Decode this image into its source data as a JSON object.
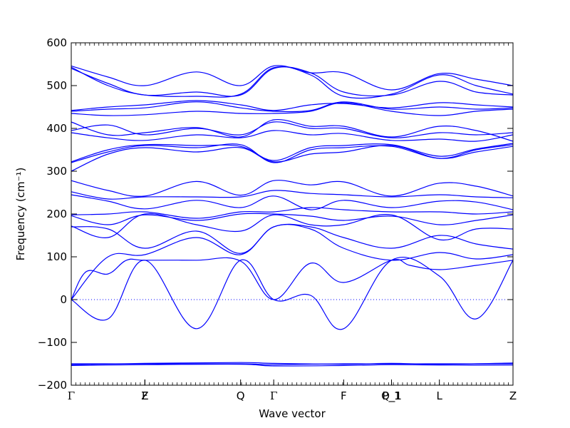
{
  "chart_data": {
    "type": "line",
    "title": "",
    "xlabel": "Wave vector",
    "ylabel": "Frequency (cm⁻¹)",
    "ylim": [
      -200,
      600
    ],
    "yticks": [
      -200,
      -100,
      0,
      100,
      200,
      300,
      400,
      500,
      600
    ],
    "xlim": [
      0,
      12
    ],
    "high_symmetry_points": [
      {
        "label": "Γ",
        "x": 0
      },
      {
        "label": "F",
        "x": 2
      },
      {
        "label": "Z",
        "x": 2
      },
      {
        "label": "Q",
        "x": 4.6
      },
      {
        "label": "Γ",
        "x": 5.5
      },
      {
        "label": "F",
        "x": 7.4
      },
      {
        "label": "P_1",
        "x": 8.7
      },
      {
        "label": "Q_1",
        "x": 8.7
      },
      {
        "label": "L",
        "x": 10
      },
      {
        "label": "Z",
        "x": 12
      }
    ],
    "zero_line": true,
    "line_color": "#0000ff",
    "grid": false,
    "series": [
      {
        "x": [
          0,
          2,
          4.6,
          5.5,
          7.4,
          8.7,
          10,
          12
        ],
        "values": [
          -150,
          -150,
          -150,
          -152,
          -150,
          -150,
          -150,
          -150
        ]
      },
      {
        "x": [
          0,
          2,
          4.6,
          5.5,
          7.4,
          8.7,
          10,
          12
        ],
        "values": [
          -152,
          -149,
          -147,
          -149,
          -151,
          -149,
          -151,
          -148
        ]
      },
      {
        "x": [
          0,
          2,
          4.6,
          5.5,
          7.4,
          8.7,
          10,
          12
        ],
        "values": [
          -154,
          -152,
          -151,
          -155,
          -154,
          -152,
          -153,
          -153
        ]
      },
      {
        "x": [
          0,
          1,
          2,
          3.4,
          4.6,
          5.5,
          6.5,
          7.4,
          8.7,
          10,
          11,
          12
        ],
        "values": [
          0,
          -45,
          92,
          -68,
          92,
          0,
          10,
          -68,
          92,
          55,
          -45,
          92
        ]
      },
      {
        "x": [
          0,
          0.4,
          1,
          1.5,
          2,
          3.4,
          4.6,
          5.5,
          6.5,
          7.4,
          8.7,
          9.2,
          10,
          11,
          12
        ],
        "values": [
          0,
          65,
          60,
          92,
          92,
          92,
          90,
          0,
          85,
          40,
          92,
          80,
          70,
          80,
          92
        ]
      },
      {
        "x": [
          0,
          1,
          2,
          3.4,
          4.6,
          5.5,
          6.5,
          7.4,
          8.7,
          10,
          11,
          12
        ],
        "values": [
          0,
          100,
          105,
          145,
          105,
          170,
          165,
          120,
          92,
          110,
          95,
          105
        ]
      },
      {
        "x": [
          0,
          1,
          2,
          3.4,
          4.6,
          5.5,
          6.5,
          7.4,
          8.7,
          10,
          11,
          12
        ],
        "values": [
          170,
          165,
          120,
          160,
          108,
          170,
          170,
          145,
          120,
          150,
          130,
          118
        ]
      },
      {
        "x": [
          0,
          1,
          2,
          3.4,
          4.6,
          5.5,
          6.5,
          7.4,
          8.7,
          10,
          11,
          12
        ],
        "values": [
          172,
          145,
          200,
          175,
          160,
          198,
          175,
          175,
          198,
          140,
          165,
          165
        ]
      },
      {
        "x": [
          0,
          1,
          2,
          3.4,
          4.6,
          5.5,
          6.5,
          7.4,
          8.7,
          10,
          11,
          12
        ],
        "values": [
          196,
          175,
          198,
          185,
          200,
          200,
          195,
          185,
          195,
          175,
          185,
          198
        ]
      },
      {
        "x": [
          0,
          1,
          2,
          3.4,
          4.6,
          5.5,
          6.5,
          7.4,
          8.7,
          10,
          11,
          12
        ],
        "values": [
          198,
          200,
          205,
          190,
          205,
          205,
          215,
          210,
          205,
          205,
          200,
          205
        ]
      },
      {
        "x": [
          0,
          1,
          2,
          3.4,
          4.6,
          5.5,
          6.5,
          7.4,
          8.7,
          10,
          11,
          12
        ],
        "values": [
          245,
          230,
          212,
          232,
          215,
          242,
          210,
          232,
          215,
          230,
          228,
          210
        ]
      },
      {
        "x": [
          0,
          1,
          2,
          3.4,
          4.6,
          5.5,
          6.5,
          7.4,
          8.7,
          10,
          11,
          12
        ],
        "values": [
          252,
          235,
          240,
          240,
          240,
          255,
          248,
          245,
          240,
          245,
          240,
          238
        ]
      },
      {
        "x": [
          0,
          1,
          2,
          3.4,
          4.6,
          5.5,
          6.5,
          7.4,
          8.7,
          10,
          11,
          12
        ],
        "values": [
          278,
          255,
          242,
          276,
          244,
          278,
          268,
          275,
          242,
          272,
          265,
          242
        ]
      },
      {
        "x": [
          0,
          1,
          2,
          3.4,
          4.6,
          5.5,
          6.5,
          7.4,
          8.7,
          10,
          11,
          12
        ],
        "values": [
          300,
          340,
          355,
          345,
          355,
          322,
          340,
          345,
          360,
          330,
          345,
          358
        ]
      },
      {
        "x": [
          0,
          1,
          2,
          3.4,
          4.6,
          5.5,
          6.5,
          7.4,
          8.7,
          10,
          11,
          12
        ],
        "values": [
          320,
          345,
          360,
          355,
          362,
          320,
          350,
          355,
          358,
          330,
          350,
          362
        ]
      },
      {
        "x": [
          0,
          1,
          2,
          3.4,
          4.6,
          5.5,
          6.5,
          7.4,
          8.7,
          10,
          11,
          12
        ],
        "values": [
          322,
          350,
          362,
          360,
          358,
          325,
          355,
          360,
          362,
          335,
          352,
          365
        ]
      },
      {
        "x": [
          0,
          1,
          2,
          3.4,
          4.6,
          5.5,
          6.5,
          7.4,
          8.7,
          10,
          11,
          12
        ],
        "values": [
          390,
          378,
          372,
          385,
          378,
          395,
          385,
          388,
          372,
          375,
          370,
          385
        ]
      },
      {
        "x": [
          0,
          1,
          2,
          3.4,
          4.6,
          5.5,
          6.5,
          7.4,
          8.7,
          10,
          11,
          12
        ],
        "values": [
          395,
          408,
          385,
          400,
          385,
          415,
          400,
          400,
          378,
          390,
          385,
          390
        ]
      },
      {
        "x": [
          0,
          1,
          2,
          3.4,
          4.6,
          5.5,
          6.5,
          7.4,
          8.7,
          10,
          11,
          12
        ],
        "values": [
          415,
          385,
          390,
          402,
          380,
          420,
          405,
          405,
          380,
          405,
          395,
          370
        ]
      },
      {
        "x": [
          0,
          1,
          2,
          3.4,
          4.6,
          5.5,
          6.5,
          7.4,
          8.7,
          10,
          11,
          12
        ],
        "values": [
          435,
          430,
          432,
          440,
          435,
          435,
          440,
          460,
          440,
          430,
          440,
          445
        ]
      },
      {
        "x": [
          0,
          1,
          2,
          3.4,
          4.6,
          5.5,
          6.5,
          7.4,
          8.7,
          10,
          11,
          12
        ],
        "values": [
          440,
          445,
          448,
          462,
          448,
          440,
          442,
          462,
          445,
          450,
          445,
          448
        ]
      },
      {
        "x": [
          0,
          1,
          2,
          3.4,
          4.6,
          5.5,
          6.5,
          7.4,
          8.7,
          10,
          11,
          12
        ],
        "values": [
          442,
          450,
          455,
          465,
          455,
          442,
          455,
          458,
          448,
          460,
          455,
          450
        ]
      },
      {
        "x": [
          0,
          1,
          2,
          3.4,
          4.6,
          5.5,
          6.5,
          7.4,
          8.7,
          10,
          11,
          12
        ],
        "values": [
          540,
          505,
          478,
          485,
          478,
          540,
          530,
          485,
          478,
          510,
          485,
          478
        ]
      },
      {
        "x": [
          0,
          1,
          2,
          3.4,
          4.6,
          5.5,
          6.5,
          7.4,
          8.7,
          10,
          11,
          12
        ],
        "values": [
          543,
          500,
          478,
          475,
          480,
          542,
          525,
          475,
          480,
          525,
          500,
          480
        ]
      },
      {
        "x": [
          0,
          1,
          2,
          3.4,
          4.6,
          5.5,
          6.5,
          7.4,
          8.7,
          10,
          11,
          12
        ],
        "values": [
          546,
          520,
          500,
          532,
          500,
          546,
          530,
          530,
          490,
          528,
          515,
          500
        ]
      }
    ]
  }
}
